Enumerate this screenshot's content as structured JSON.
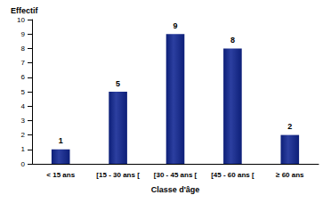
{
  "chart_data": {
    "type": "bar",
    "y_label": "Effectif",
    "x_label": "Classe d'âge",
    "categories": [
      "< 15 ans",
      "[15 - 30 ans [",
      "[30 - 45 ans [",
      "[45 - 60 ans [",
      "≥ 60 ans"
    ],
    "values": [
      1,
      5,
      9,
      8,
      2
    ],
    "color": "#0d1f78",
    "ylim": [
      0,
      10
    ],
    "yticks": [
      0,
      1,
      2,
      3,
      4,
      5,
      6,
      7,
      8,
      9,
      10
    ],
    "grid": false,
    "data_labels": true
  }
}
